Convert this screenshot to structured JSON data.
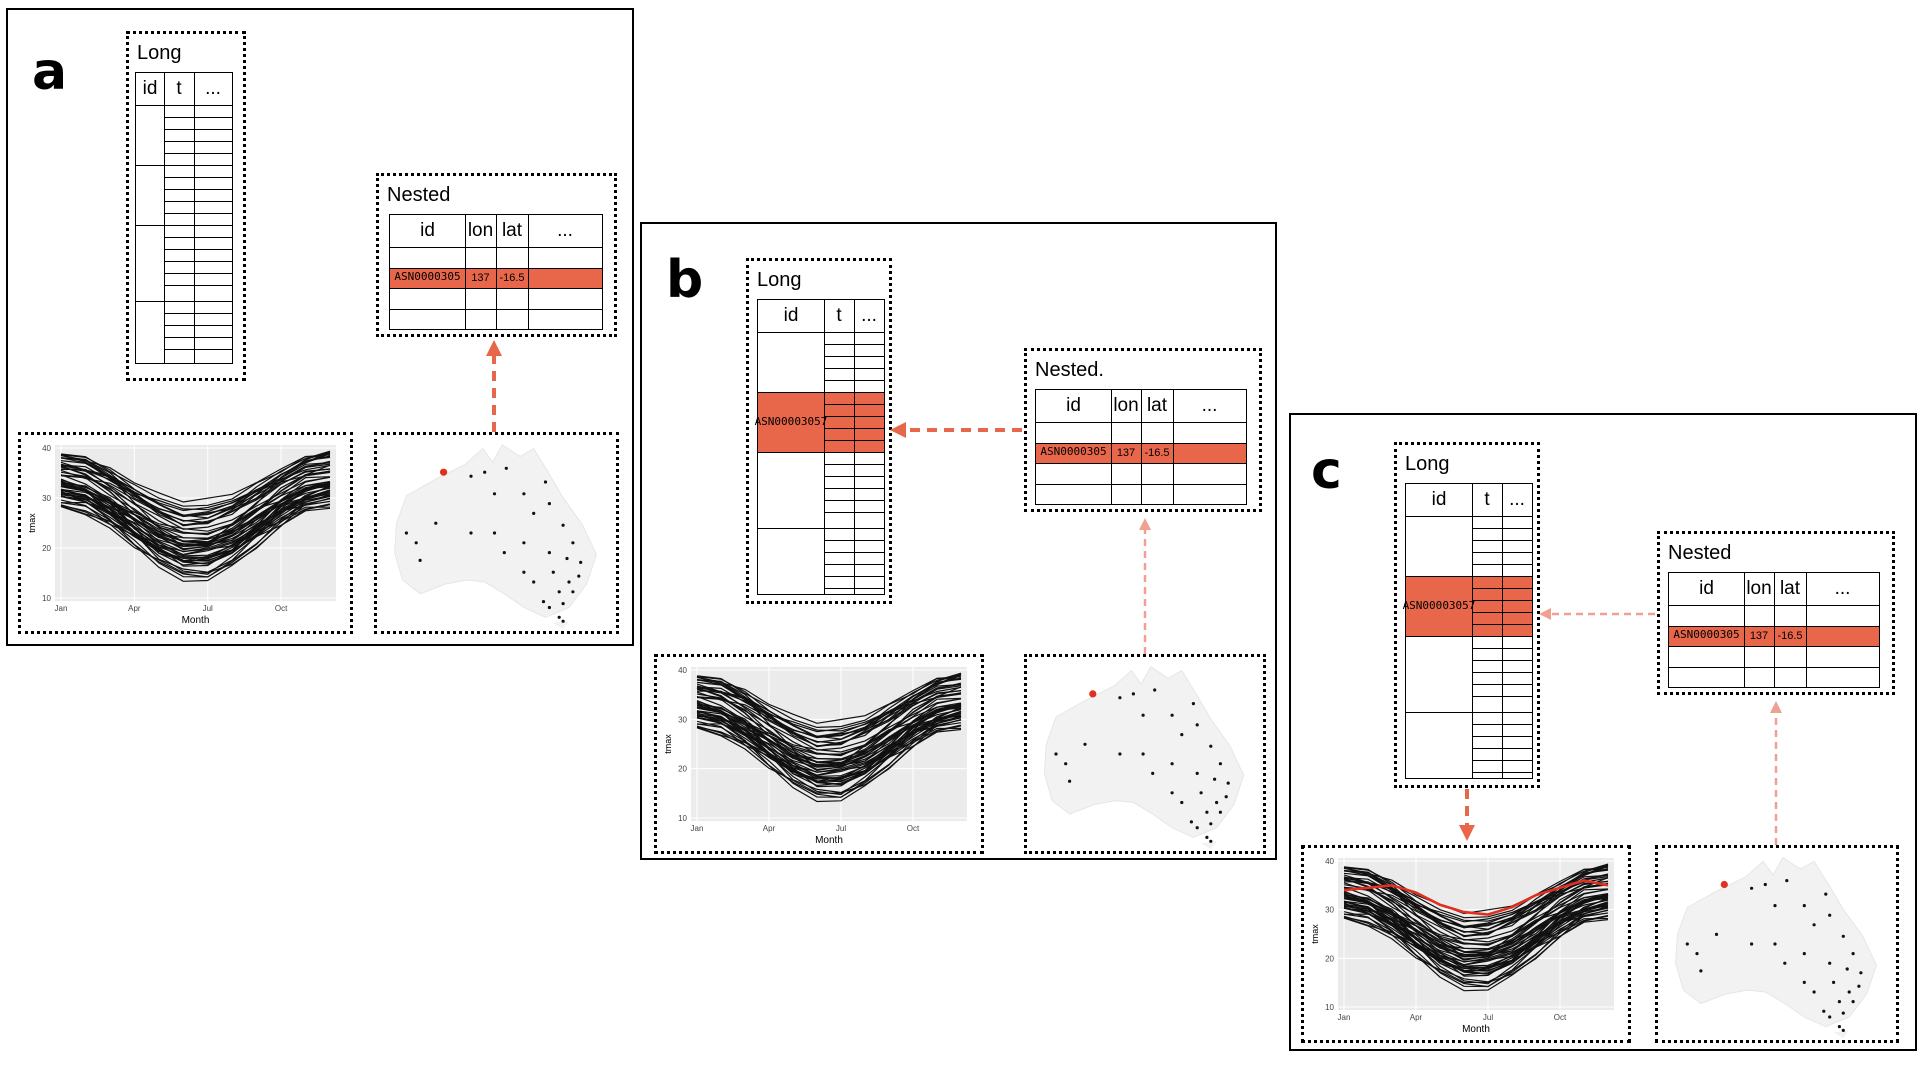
{
  "panels": [
    {
      "letter": "a",
      "long_title": "Long",
      "nested_title": "Nested",
      "long_headers": [
        "id",
        "t",
        "..."
      ],
      "nested_headers": [
        "id",
        "lon",
        "lat",
        "..."
      ],
      "nested_row": {
        "id": "ASN0000305",
        "lon": "137",
        "lat": "-16.5"
      },
      "long_highlight": null,
      "highlight_series": false
    },
    {
      "letter": "b",
      "long_title": "Long",
      "nested_title": "Nested.",
      "long_headers": [
        "id",
        "t",
        "..."
      ],
      "nested_headers": [
        "id",
        "lon",
        "lat",
        "..."
      ],
      "nested_row": {
        "id": "ASN0000305",
        "lon": "137",
        "lat": "-16.5"
      },
      "long_highlight": {
        "line1": "ASN000",
        "line2": "03057"
      },
      "highlight_series": false
    },
    {
      "letter": "c",
      "long_title": "Long",
      "nested_title": "Nested",
      "long_headers": [
        "id",
        "t",
        "..."
      ],
      "nested_headers": [
        "id",
        "lon",
        "lat",
        "..."
      ],
      "nested_row": {
        "id": "ASN0000305",
        "lon": "137",
        "lat": "-16.5"
      },
      "long_highlight": {
        "line1": "ASN000",
        "line2": "03057"
      },
      "highlight_series": true
    }
  ],
  "plot": {
    "xlabel": "Month",
    "ylabel": "tmax",
    "x_ticks": [
      "Jan",
      "Apr",
      "Jul",
      "Oct"
    ],
    "y_ticks": [
      "10",
      "20",
      "30",
      "40"
    ],
    "ylim": [
      10,
      40
    ]
  },
  "colors": {
    "highlight": "#e8664a",
    "arrow_strong": "#e8664a",
    "arrow_light": "#f0a090",
    "plot_bg": "#ebebeb",
    "map_land": "#f2f2f2",
    "station_red": "#e03020"
  }
}
